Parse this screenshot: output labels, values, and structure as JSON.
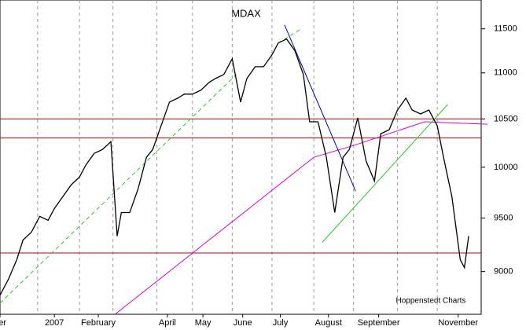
{
  "chart_data": {
    "type": "line",
    "title": "MDAX",
    "source": "Hoppenstedt Charts",
    "log_scale": true,
    "xlim": [
      0,
      230
    ],
    "ylim": [
      8620,
      11840
    ],
    "yticks": [
      9000,
      9500,
      10000,
      10500,
      11000,
      11500
    ],
    "xticks": [
      {
        "value": 0,
        "label": "er"
      },
      {
        "value": 26,
        "label": "2007"
      },
      {
        "value": 47,
        "label": "February"
      },
      {
        "value": 80,
        "label": "April"
      },
      {
        "value": 97,
        "label": "May"
      },
      {
        "value": 116,
        "label": "June"
      },
      {
        "value": 134,
        "label": "July"
      },
      {
        "value": 157,
        "label": "August"
      },
      {
        "value": 181,
        "label": "September"
      },
      {
        "value": 219,
        "label": "November"
      }
    ],
    "xgrid": [
      18,
      38,
      54,
      75,
      92,
      111,
      130,
      150,
      169,
      190,
      209
    ],
    "grid": true,
    "x": [
      0,
      4,
      8,
      11,
      15,
      19,
      23,
      26,
      30,
      34,
      38,
      41,
      45,
      49,
      53,
      55,
      56,
      58,
      62,
      66,
      70,
      73,
      77,
      81,
      85,
      88,
      92,
      96,
      100,
      103,
      107,
      111,
      115,
      118,
      122,
      126,
      130,
      133,
      137,
      141,
      145,
      148,
      152,
      156,
      160,
      164,
      167,
      171,
      175,
      179,
      182,
      186,
      190,
      194,
      197,
      201,
      205,
      209,
      212,
      216,
      220,
      222,
      224
    ],
    "series": [
      {
        "color": "#000000",
        "values": [
          8788,
          8929,
          9108,
          9291,
          9365,
          9516,
          9478,
          9592,
          9707,
          9823,
          9902,
          10021,
          10141,
          10181,
          10262,
          9630,
          9328,
          9553,
          9553,
          9784,
          10101,
          10181,
          10428,
          10680,
          10723,
          10766,
          10766,
          10809,
          10895,
          10938,
          10982,
          11158,
          10680,
          10938,
          11069,
          11069,
          11202,
          11337,
          11382,
          11247,
          10982,
          10470,
          10470,
          10101,
          9553,
          10101,
          10181,
          10511,
          10061,
          9862,
          10344,
          10386,
          10595,
          10723,
          10595,
          10553,
          10595,
          10428,
          10101,
          9707,
          9108,
          9036,
          9328
        ]
      }
    ],
    "hlines": {
      "color": "#cc0000",
      "values": [
        10500,
        10300,
        9170
      ]
    },
    "moving_average": {
      "color": "#dd00dd",
      "x": [
        55,
        150,
        169,
        203,
        233
      ],
      "values": [
        8620,
        10101,
        10222,
        10470,
        10444
      ]
    },
    "trendlines": [
      {
        "color": "#0000aa",
        "dashed": false,
        "x": [
          136,
          170
        ],
        "values": [
          11546,
          9761
        ]
      },
      {
        "color": "#22cc22",
        "dashed": false,
        "x": [
          154,
          214
        ],
        "values": [
          9269,
          10654
        ]
      },
      {
        "color": "#22cc22",
        "dashed": true,
        "x": [
          0,
          113
        ],
        "values": [
          8718,
          10982
        ]
      },
      {
        "color": "#22cc22",
        "dashed": true,
        "x": [
          133,
          144
        ],
        "values": [
          11337,
          11500
        ]
      }
    ]
  }
}
